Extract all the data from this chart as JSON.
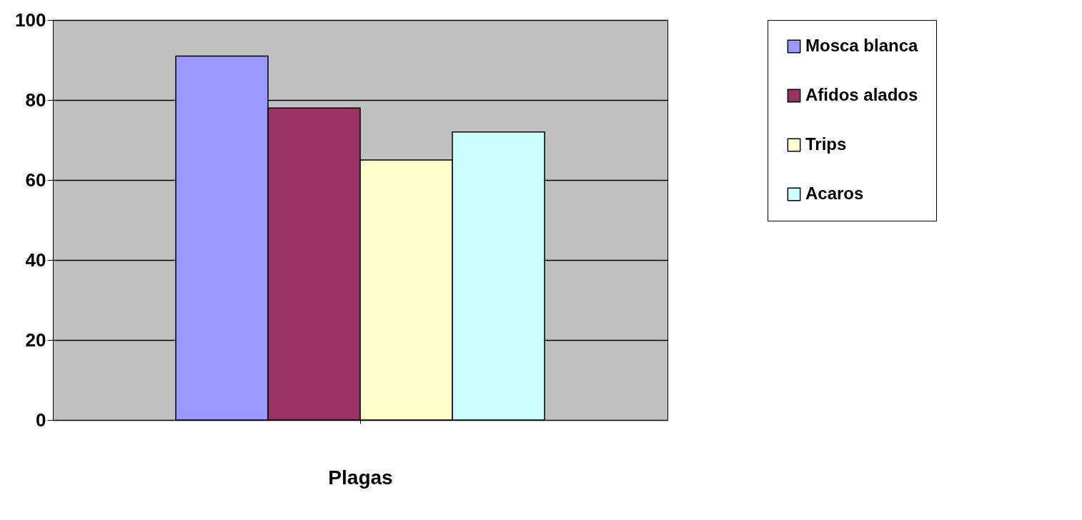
{
  "chart_data": {
    "type": "bar",
    "xlabel": "Plagas",
    "categories": [
      null
    ],
    "series": [
      {
        "name": "Mosca blanca",
        "color": "#9999ff",
        "values": [
          91
        ]
      },
      {
        "name": "Afidos alados",
        "color": "#993366",
        "values": [
          78
        ]
      },
      {
        "name": "Trips",
        "color": "#ffffcc",
        "values": [
          65
        ]
      },
      {
        "name": "Acaros",
        "color": "#ccffff",
        "values": [
          72
        ]
      }
    ],
    "ylim": [
      0,
      100
    ],
    "yticks": [
      0,
      20,
      40,
      60,
      80,
      100
    ],
    "grid": "y",
    "legend": "right"
  }
}
